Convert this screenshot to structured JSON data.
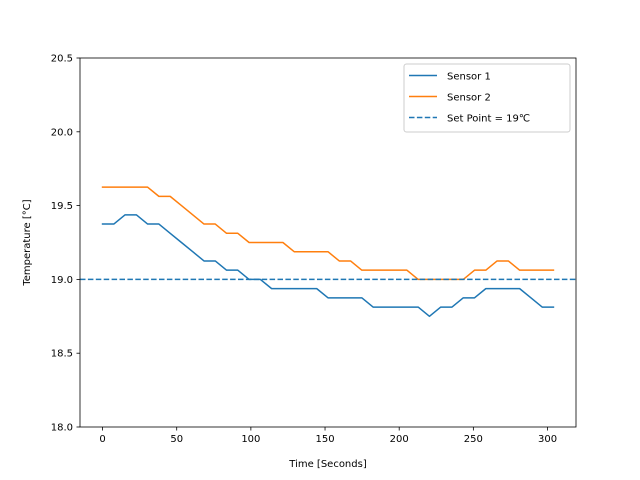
{
  "chart_data": {
    "type": "line",
    "title": "",
    "xlabel": "Time [Seconds]",
    "ylabel": "Temperature [°C]",
    "xlim": [
      -15.2,
      319.2
    ],
    "ylim": [
      18.0,
      20.5
    ],
    "xticks": [
      0,
      50,
      100,
      150,
      200,
      250,
      300
    ],
    "yticks": [
      18.0,
      18.5,
      19.0,
      19.5,
      20.0,
      20.5
    ],
    "xtick_labels": [
      "0",
      "50",
      "100",
      "150",
      "200",
      "250",
      "300"
    ],
    "ytick_labels": [
      "18.0",
      "18.5",
      "19.0",
      "19.5",
      "20.0",
      "20.5"
    ],
    "grid": false,
    "legend_position": "top-right",
    "series": [
      {
        "name": "Sensor 1",
        "color": "#1f77b4",
        "style": "solid",
        "points": [
          [
            0,
            19.375
          ],
          [
            7.6,
            19.375
          ],
          [
            15.2,
            19.4375
          ],
          [
            22.8,
            19.4375
          ],
          [
            30.4,
            19.375
          ],
          [
            38,
            19.375
          ],
          [
            45.6,
            19.3125
          ],
          [
            53.2,
            19.25
          ],
          [
            60.8,
            19.1875
          ],
          [
            68.4,
            19.125
          ],
          [
            76,
            19.125
          ],
          [
            83.6,
            19.0625
          ],
          [
            91.2,
            19.0625
          ],
          [
            98.8,
            19.0
          ],
          [
            106.4,
            19.0
          ],
          [
            114,
            18.9375
          ],
          [
            121.6,
            18.9375
          ],
          [
            129.2,
            18.9375
          ],
          [
            136.8,
            18.9375
          ],
          [
            144.4,
            18.9375
          ],
          [
            152,
            18.875
          ],
          [
            159.6,
            18.875
          ],
          [
            167.2,
            18.875
          ],
          [
            174.8,
            18.875
          ],
          [
            182.4,
            18.8125
          ],
          [
            190,
            18.8125
          ],
          [
            197.6,
            18.8125
          ],
          [
            205.2,
            18.8125
          ],
          [
            212.8,
            18.8125
          ],
          [
            220.4,
            18.75
          ],
          [
            228,
            18.8125
          ],
          [
            235.6,
            18.8125
          ],
          [
            243.2,
            18.875
          ],
          [
            250.8,
            18.875
          ],
          [
            258.4,
            18.9375
          ],
          [
            266,
            18.9375
          ],
          [
            273.6,
            18.9375
          ],
          [
            281.2,
            18.9375
          ],
          [
            288.8,
            18.875
          ],
          [
            296.4,
            18.8125
          ],
          [
            304,
            18.8125
          ]
        ]
      },
      {
        "name": "Sensor 2",
        "color": "#ff7f0e",
        "style": "solid",
        "points": [
          [
            0,
            19.625
          ],
          [
            7.6,
            19.625
          ],
          [
            15.2,
            19.625
          ],
          [
            22.8,
            19.625
          ],
          [
            30.4,
            19.625
          ],
          [
            38,
            19.5625
          ],
          [
            45.6,
            19.5625
          ],
          [
            53.2,
            19.5
          ],
          [
            60.8,
            19.4375
          ],
          [
            68.4,
            19.375
          ],
          [
            76,
            19.375
          ],
          [
            83.6,
            19.3125
          ],
          [
            91.2,
            19.3125
          ],
          [
            98.8,
            19.25
          ],
          [
            106.4,
            19.25
          ],
          [
            114,
            19.25
          ],
          [
            121.6,
            19.25
          ],
          [
            129.2,
            19.1875
          ],
          [
            136.8,
            19.1875
          ],
          [
            144.4,
            19.1875
          ],
          [
            152,
            19.1875
          ],
          [
            159.6,
            19.125
          ],
          [
            167.2,
            19.125
          ],
          [
            174.8,
            19.0625
          ],
          [
            182.4,
            19.0625
          ],
          [
            190,
            19.0625
          ],
          [
            197.6,
            19.0625
          ],
          [
            205.2,
            19.0625
          ],
          [
            212.8,
            19.0
          ],
          [
            220.4,
            19.0
          ],
          [
            228,
            19.0
          ],
          [
            235.6,
            19.0
          ],
          [
            243.2,
            19.0
          ],
          [
            250.8,
            19.0625
          ],
          [
            258.4,
            19.0625
          ],
          [
            266,
            19.125
          ],
          [
            273.6,
            19.125
          ],
          [
            281.2,
            19.0625
          ],
          [
            288.8,
            19.0625
          ],
          [
            296.4,
            19.0625
          ],
          [
            304,
            19.0625
          ]
        ]
      },
      {
        "name": "Set Point = 19℃",
        "color": "#1f77b4",
        "style": "dashed",
        "hline": 19.0
      }
    ]
  }
}
